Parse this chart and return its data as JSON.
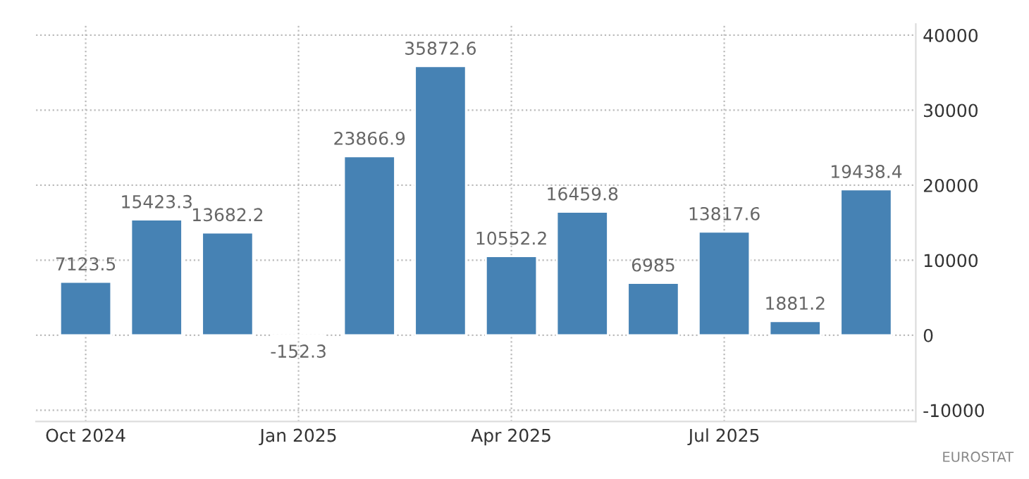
{
  "chart_data": {
    "type": "bar",
    "categories": [
      "Oct 2024",
      null,
      null,
      "Jan 2025",
      null,
      null,
      "Apr 2025",
      null,
      null,
      "Jul 2025",
      null,
      null
    ],
    "values": [
      7123.5,
      15423.3,
      13682.2,
      -152.3,
      23866.9,
      35872.6,
      10552.2,
      16459.8,
      6985,
      13817.6,
      1881.2,
      19438.4
    ],
    "color": "#4682b4",
    "ylim": [
      -11500,
      41500
    ],
    "yticks": [
      -10000,
      0,
      10000,
      20000,
      30000,
      40000
    ],
    "grid": true,
    "data_labels": true,
    "annotations": [
      "EUROSTAT"
    ]
  }
}
